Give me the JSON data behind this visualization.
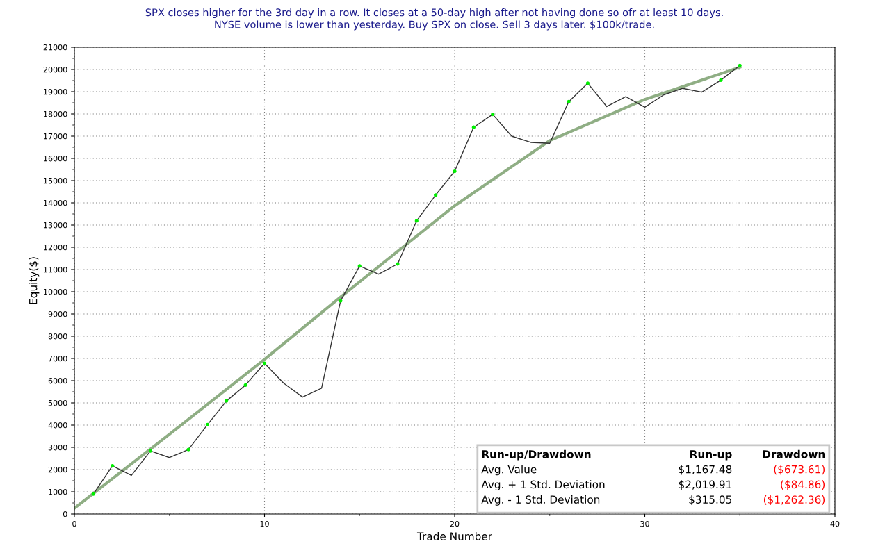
{
  "chart_data": {
    "type": "line",
    "title": "SPX closes higher for the 3rd day in a row. It closes at a 50-day high after not having done so ofr at least 10 days.\nNYSE volume is lower than yesterday. Buy SPX on close. Sell 3 days later. $100k/trade.",
    "xlabel": "Trade Number",
    "ylabel": "Equity($)",
    "series": [
      {
        "color": "#8fae84",
        "x": [
          0,
          5,
          10,
          14,
          20,
          25,
          30,
          35
        ],
        "values": [
          260,
          3590,
          6960,
          9760,
          13870,
          16800,
          18650,
          20100
        ]
      },
      {
        "color": "#333333",
        "x": [
          1,
          2,
          3,
          4,
          5,
          6,
          7,
          8,
          9,
          10,
          11,
          12,
          13,
          14,
          15,
          16,
          17,
          18,
          19,
          20,
          21,
          22,
          23,
          24,
          25,
          26,
          27,
          28,
          29,
          30,
          31,
          32,
          33,
          34,
          35
        ],
        "values": [
          900,
          2170,
          1740,
          2840,
          2540,
          2900,
          4020,
          5090,
          5800,
          6780,
          5890,
          5260,
          5660,
          9590,
          11160,
          10790,
          11250,
          13190,
          14350,
          15420,
          17400,
          17980,
          17000,
          16720,
          16680,
          18550,
          19380,
          18330,
          18780,
          18300,
          18860,
          19150,
          18980,
          19520,
          20180
        ]
      },
      {
        "type": "scatter",
        "color": "#00ee00",
        "marker": "circle",
        "x": [
          1,
          2,
          4,
          6,
          7,
          8,
          9,
          10,
          14,
          15,
          17,
          18,
          19,
          20,
          21,
          22,
          26,
          27,
          34,
          35
        ],
        "values": [
          900,
          2170,
          2840,
          2900,
          4020,
          5090,
          5800,
          6780,
          9590,
          11160,
          11250,
          13190,
          14350,
          15420,
          17400,
          17980,
          18550,
          19380,
          19520,
          20180
        ]
      }
    ],
    "xlim": [
      0,
      40
    ],
    "xticks": [
      0,
      10,
      20,
      30,
      40
    ],
    "ylim": [
      0,
      21000
    ],
    "yticks": [
      0,
      1000,
      2000,
      3000,
      4000,
      5000,
      6000,
      7000,
      8000,
      9000,
      10000,
      11000,
      12000,
      13000,
      14000,
      15000,
      16000,
      17000,
      18000,
      19000,
      20000,
      21000
    ],
    "grid": true,
    "line_style": "solid",
    "annotations": [
      "Run-up/Drawdown",
      "Run-up",
      "Drawdown",
      "Avg. Value",
      "$1,167.48",
      "($673.61)",
      "Avg. + 1 Std. Deviation",
      "$2,019.91",
      "($84.86)",
      "Avg. - 1 Std. Deviation",
      "$315.05",
      "($1,262.36)"
    ]
  }
}
